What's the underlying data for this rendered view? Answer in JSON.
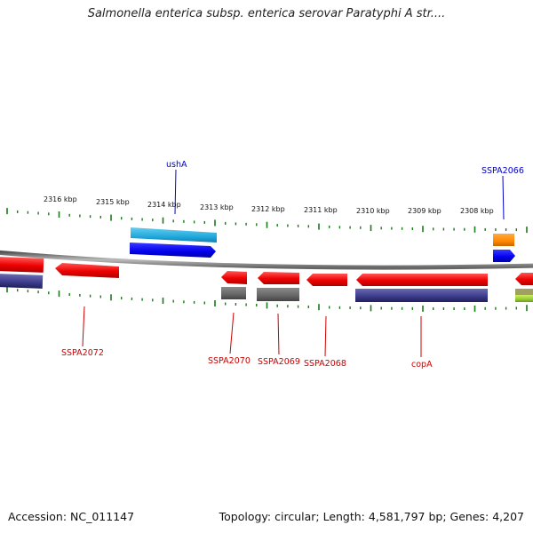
{
  "title": "Salmonella enterica subsp. enterica serovar Paratyphi A str....",
  "footer": {
    "accession": "Accession: NC_011147",
    "summary": "Topology: circular; Length: 4,581,797 bp; Genes: 4,207"
  },
  "scale_labels": [
    "2316 kbp",
    "2315 kbp",
    "2314 kbp",
    "2313 kbp",
    "2312 kbp",
    "2311 kbp",
    "2310 kbp",
    "2309 kbp",
    "2308 kbp"
  ],
  "gene_labels": {
    "ushA": "ushA",
    "SSPA2066": "SSPA2066",
    "SSPA2072": "SSPA2072",
    "SSPA2070": "SSPA2070",
    "SSPA2069": "SSPA2069",
    "SSPA2068": "SSPA2068",
    "copA": "copA"
  },
  "colors": {
    "forward_label": "#0000cc",
    "reverse_label": "#cc0000",
    "tick": "#1a7a1a",
    "backbone": "#888888",
    "red_gene": "#ee0000",
    "blue_gene": "#0000ee",
    "cyan_gene": "#22aadd",
    "navy_gene": "#3a3a8a",
    "gray_gene": "#666666",
    "orange_gene": "#ff8800",
    "lime_gene": "#99cc33"
  }
}
